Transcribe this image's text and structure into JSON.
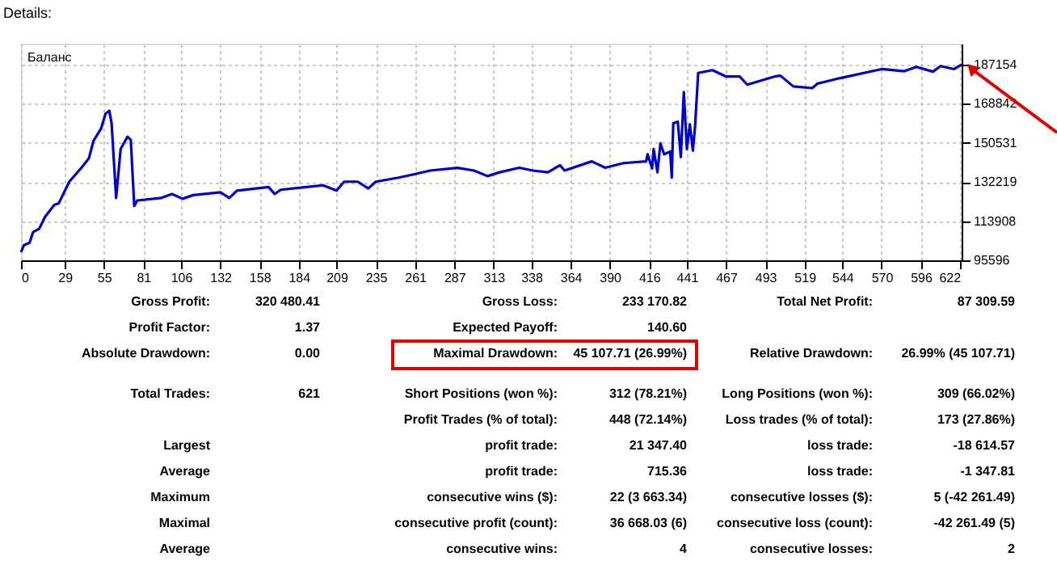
{
  "chart_data": {
    "type": "line",
    "title": "Details:",
    "x": [
      0,
      2,
      5.7,
      8,
      12,
      16,
      22,
      25,
      32,
      40,
      45,
      48,
      53,
      56,
      58.5,
      60,
      63,
      64.5,
      66,
      70.5,
      72.7,
      75,
      77,
      93,
      100,
      107,
      114,
      132,
      138,
      143,
      164,
      168,
      172,
      189,
      200,
      209,
      214,
      223,
      230,
      235,
      250,
      260,
      271,
      289,
      300,
      309,
      317,
      330,
      339,
      349,
      357,
      360,
      378,
      387,
      399,
      414,
      415,
      418,
      419,
      421.5,
      423.5,
      426,
      430,
      431,
      432,
      435,
      437,
      439,
      441,
      443,
      445,
      446.5,
      448.5,
      458,
      467,
      476,
      481,
      499,
      503,
      511.5,
      524,
      527.5,
      542,
      570,
      585,
      593,
      604,
      609,
      618,
      623
    ],
    "series": [
      {
        "name": "Баланс",
        "color": "#0000cc",
        "values": [
          99400,
          102700,
          103800,
          108800,
          110300,
          116000,
          121500,
          122300,
          132400,
          138900,
          143400,
          151500,
          157200,
          164300,
          165600,
          159700,
          124800,
          136300,
          147700,
          153400,
          152000,
          121000,
          123600,
          124800,
          126600,
          124400,
          126100,
          127400,
          124800,
          128200,
          129900,
          126600,
          128600,
          129900,
          130700,
          128200,
          132400,
          132400,
          129200,
          132400,
          134300,
          135800,
          137600,
          138900,
          137600,
          135000,
          136800,
          138900,
          137600,
          136800,
          140100,
          137600,
          141900,
          138900,
          141100,
          141900,
          145200,
          138600,
          147700,
          136800,
          150300,
          145200,
          146500,
          134300,
          159700,
          160500,
          143900,
          174400,
          147700,
          159200,
          146900,
          158900,
          183300,
          184600,
          181600,
          181600,
          177800,
          181600,
          182000,
          177000,
          176200,
          178300,
          180800,
          185100,
          184100,
          186100,
          183900,
          186500,
          185100,
          187200
        ]
      }
    ],
    "xlim": [
      0,
      623
    ],
    "ylim": [
      95596,
      197000
    ],
    "xticks": [
      0,
      29,
      55,
      81,
      106,
      132,
      158,
      184,
      209,
      235,
      261,
      287,
      313,
      338,
      364,
      390,
      416,
      441,
      467,
      493,
      519,
      544,
      570,
      596,
      622
    ],
    "yticks": [
      95596,
      113908,
      132219,
      150531,
      168842,
      187154
    ],
    "grid": true,
    "legend": "top left",
    "marker": "none",
    "line_style": "solid",
    "annotations": [
      "Gross Profit:",
      "320 480.41",
      "Gross Loss:",
      "233 170.82",
      "Total Net Profit:",
      "87 309.59",
      "Profit Factor:",
      "1.37",
      "Expected Payoff:",
      "140.60",
      "Absolute Drawdown:",
      "0.00",
      "Maximal Drawdown:",
      "45 107.71 (26.99%)",
      "Relative Drawdown:",
      "26.99% (45 107.71)",
      "Total Trades:",
      "621",
      "Short Positions (won %):",
      "312 (78.21%)",
      "Long Positions (won %):",
      "309 (66.02%)",
      "Profit Trades (% of total):",
      "448 (72.14%)",
      "Loss trades (% of total):",
      "173 (27.86%)",
      "Largest",
      "profit trade:",
      "21 347.40",
      "loss trade:",
      "-18 614.57",
      "Average",
      "profit trade:",
      "715.36",
      "loss trade:",
      "-1 347.81",
      "Maximum",
      "consecutive wins ($):",
      "22 (3 663.34)",
      "consecutive losses ($):",
      "5 (-42 261.49)",
      "Maximal",
      "consecutive profit (count):",
      "36 668.03 (6)",
      "consecutive loss (count):",
      "-42 261.49 (5)",
      "Average",
      "consecutive wins:",
      "4",
      "consecutive losses:",
      "2"
    ]
  }
}
